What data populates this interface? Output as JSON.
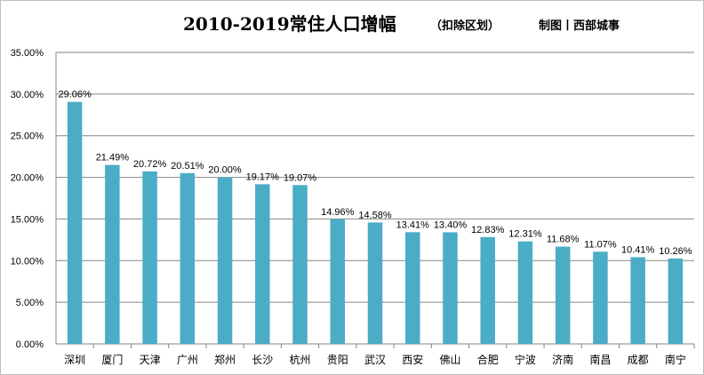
{
  "chart_data": {
    "type": "bar",
    "title": "2010-2019常住人口增幅",
    "subtitle": "（扣除区划）",
    "credit": "制图丨西部城事",
    "categories": [
      "深圳",
      "厦门",
      "天津",
      "广州",
      "郑州",
      "长沙",
      "杭州",
      "贵阳",
      "武汉",
      "西安",
      "佛山",
      "合肥",
      "宁波",
      "济南",
      "南昌",
      "成都",
      "南宁"
    ],
    "values": [
      29.06,
      21.49,
      20.72,
      20.51,
      20.0,
      19.17,
      19.07,
      14.96,
      14.58,
      13.41,
      13.4,
      12.83,
      12.31,
      11.68,
      11.07,
      10.41,
      10.26
    ],
    "data_labels": [
      "29.06%",
      "21.49%",
      "20.72%",
      "20.51%",
      "20.00%",
      "19.17%",
      "19.07%",
      "14.96%",
      "14.58%",
      "13.41%",
      "13.40%",
      "12.83%",
      "12.31%",
      "11.68%",
      "11.07%",
      "10.41%",
      "10.26%"
    ],
    "y_ticks": [
      "0.00%",
      "5.00%",
      "10.00%",
      "15.00%",
      "20.00%",
      "25.00%",
      "30.00%",
      "35.00%"
    ],
    "ylim": [
      0,
      35
    ],
    "y_step": 5,
    "grid": true,
    "legend": "none",
    "bar_color": "#4BACC6"
  }
}
